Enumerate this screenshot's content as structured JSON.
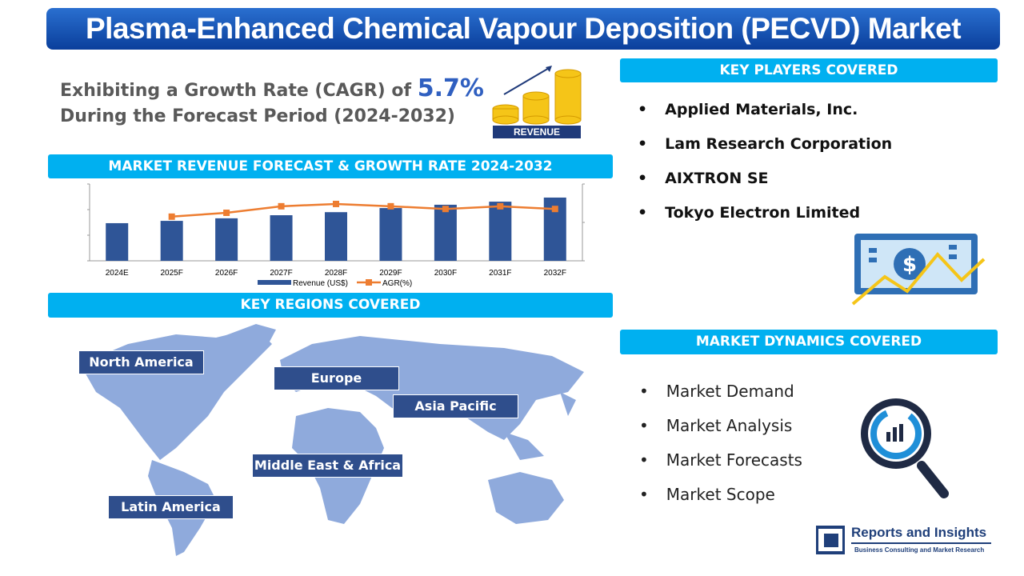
{
  "title": "Plasma-Enhanced Chemical Vapour Deposition (PECVD) Market",
  "growth": {
    "line1": "Exhibiting a Growth Rate (CAGR) of",
    "value": "5.7%",
    "line2": "During the Forecast Period (2024-2032)",
    "icon_label": "REVENUE"
  },
  "sections": {
    "forecast": "MARKET REVENUE FORECAST & GROWTH RATE 2024-2032",
    "regions": "KEY REGIONS COVERED",
    "players": "KEY PLAYERS COVERED",
    "dynamics": "MARKET DYNAMICS COVERED"
  },
  "players": [
    "Applied Materials, Inc.",
    "Lam Research Corporation",
    "AIXTRON SE",
    "Tokyo Electron Limited"
  ],
  "dynamics": [
    "Market Demand",
    "Market Analysis",
    "Market Forecasts",
    "Market Scope"
  ],
  "regions": [
    "North America",
    "Europe",
    "Asia Pacific",
    "Middle East & Africa",
    "Latin America"
  ],
  "logo": {
    "name": "Reports and Insights",
    "tagline": "Business Consulting and Market Research"
  },
  "colors": {
    "bar": "#2f5597",
    "line": "#ed7d31",
    "accent": "#00b0f0",
    "map": "#8faadc"
  },
  "chart_data": {
    "type": "bar",
    "title": "MARKET REVENUE FORECAST & GROWTH RATE 2024-2032",
    "categories": [
      "2024E",
      "2025F",
      "2026F",
      "2027F",
      "2028F",
      "2029F",
      "2030F",
      "2031F",
      "2032F"
    ],
    "series": [
      {
        "name": "Revenue (US$)",
        "type": "bar",
        "axis": "left",
        "values": [
          1.47,
          1.56,
          1.66,
          1.78,
          1.9,
          2.06,
          2.19,
          2.31,
          2.47
        ]
      },
      {
        "name": "AGR(%)",
        "type": "line",
        "axis": "right",
        "values": [
          null,
          1.15,
          1.25,
          1.42,
          1.48,
          1.42,
          1.35,
          1.42,
          1.35
        ]
      }
    ],
    "ylim": [
      0,
      3
    ],
    "y2lim": [
      0,
      2
    ],
    "legend": "bottom",
    "grid": false
  }
}
